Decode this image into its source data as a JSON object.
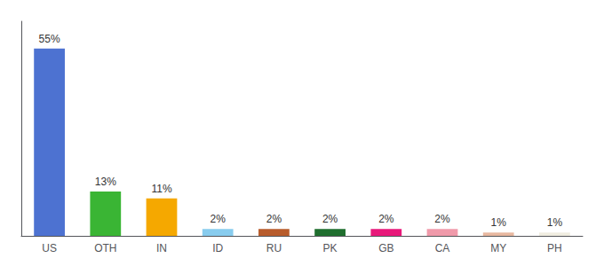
{
  "chart_data": {
    "type": "bar",
    "categories": [
      "US",
      "OTH",
      "IN",
      "ID",
      "RU",
      "PK",
      "GB",
      "CA",
      "MY",
      "PH"
    ],
    "values": [
      55,
      13,
      11,
      2,
      2,
      2,
      2,
      2,
      1,
      1
    ],
    "value_labels": [
      "55%",
      "13%",
      "11%",
      "2%",
      "2%",
      "2%",
      "2%",
      "2%",
      "1%",
      "1%"
    ],
    "colors": [
      "#4d72d1",
      "#3ab534",
      "#f5a800",
      "#88ccee",
      "#b85c2c",
      "#1f6e2e",
      "#e8197a",
      "#f09aaa",
      "#e8b8a0",
      "#f0ede0"
    ],
    "ylim": [
      0,
      63
    ],
    "grid": false,
    "data_labels": true,
    "tick_labels": "x"
  }
}
